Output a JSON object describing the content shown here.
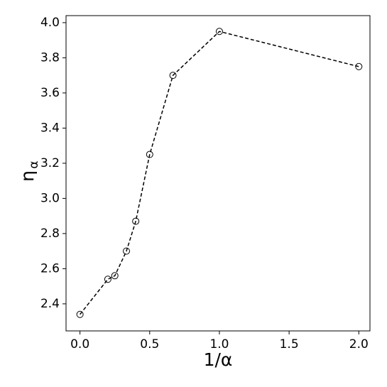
{
  "chart_data": {
    "type": "line",
    "xlabel": "1/α",
    "ylabel": "η",
    "ylabel_subscript": "α",
    "x": [
      0,
      0.2,
      0.25,
      0.333,
      0.4,
      0.5,
      0.667,
      1.0,
      2.0
    ],
    "series": [
      {
        "color": "#000000",
        "values": [
          2.34,
          2.54,
          2.56,
          2.7,
          2.87,
          3.25,
          3.7,
          3.95,
          3.75
        ]
      }
    ],
    "xlim": [
      -0.1,
      2.08
    ],
    "ylim": [
      2.246,
      4.04
    ],
    "xticks": [
      {
        "value": 0,
        "label": "0.0"
      },
      0.5,
      {
        "value": 1,
        "label": "1.0"
      },
      1.5,
      {
        "value": 2,
        "label": "2.0"
      }
    ],
    "yticks": [
      2.4,
      2.6,
      2.8,
      {
        "value": 3,
        "label": "3.0"
      },
      3.2,
      3.4,
      3.6,
      3.8,
      {
        "value": 4,
        "label": "4.0"
      }
    ],
    "grid": false,
    "line_style": "dashed",
    "marker": "open-circle"
  }
}
